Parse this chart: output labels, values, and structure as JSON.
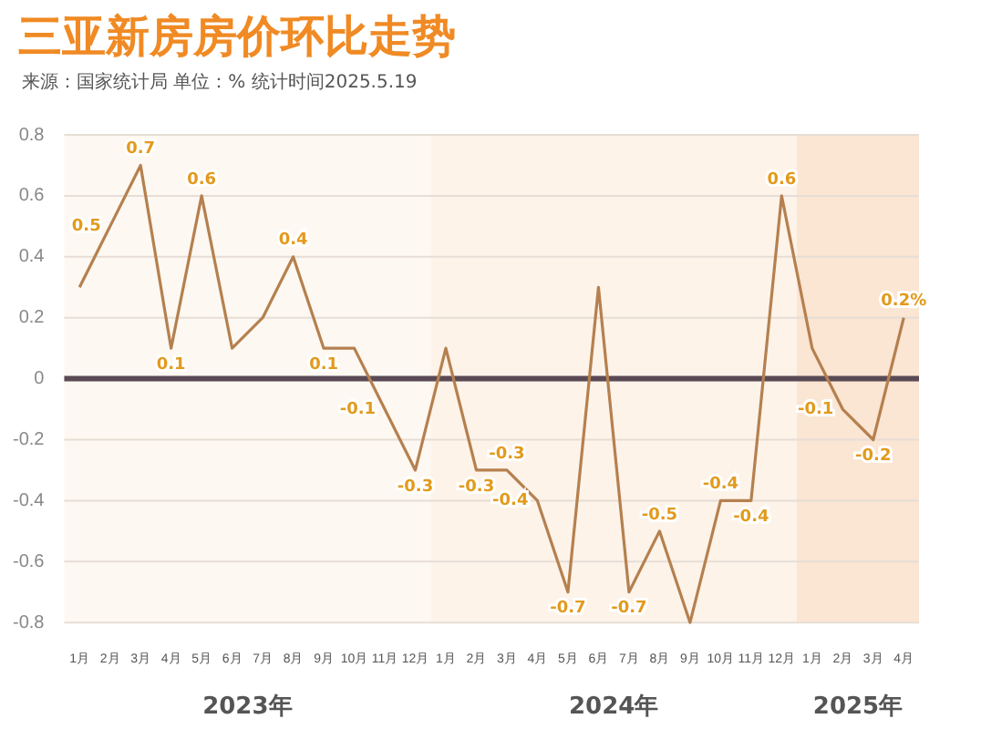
{
  "chart_data": {
    "type": "line",
    "title": "三亚新房房价环比走势",
    "subtitle": "来源：国家统计局    单位：%    统计时间2025.5.19",
    "x": [
      "2023-01",
      "2023-02",
      "2023-03",
      "2023-04",
      "2023-05",
      "2023-06",
      "2023-07",
      "2023-08",
      "2023-09",
      "2023-10",
      "2023-11",
      "2023-12",
      "2024-01",
      "2024-02",
      "2024-03",
      "2024-04",
      "2024-05",
      "2024-06",
      "2024-07",
      "2024-08",
      "2024-09",
      "2024-10",
      "2024-11",
      "2024-12",
      "2025-01",
      "2025-02",
      "2025-03",
      "2025-04"
    ],
    "series": [
      {
        "color": "#b5804f",
        "values": [
          0.3,
          0.5,
          0.7,
          0.1,
          0.6,
          0.1,
          0.2,
          0.4,
          0.1,
          0.1,
          -0.1,
          -0.3,
          0.1,
          -0.3,
          -0.3,
          -0.4,
          -0.7,
          0.3,
          -0.7,
          -0.5,
          -0.8,
          -0.4,
          -0.4,
          0.6,
          0.1,
          -0.1,
          -0.2,
          0.2
        ],
        "value_labels": [
          null,
          "0.5",
          "0.7",
          "0.1",
          "0.6",
          null,
          null,
          "0.4",
          "0.1",
          null,
          "-0.1",
          "-0.3",
          null,
          "-0.3",
          "-0.3",
          "-0.4",
          "-0.7",
          null,
          "-0.7",
          "-0.5",
          null,
          "-0.4",
          "-0.4",
          "0.6",
          null,
          "-0.1",
          "-0.2",
          "0.2%"
        ]
      }
    ],
    "xlim": [
      "2022-12-16",
      "2025-04-16"
    ],
    "xticks": [
      {
        "value": "2023-01",
        "label": "1月"
      },
      {
        "value": "2023-02",
        "label": "2月"
      },
      {
        "value": "2023-03",
        "label": "3月"
      },
      {
        "value": "2023-04",
        "label": "4月"
      },
      {
        "value": "2023-05",
        "label": "5月"
      },
      {
        "value": "2023-06",
        "label": "6月"
      },
      {
        "value": "2023-07",
        "label": "7月"
      },
      {
        "value": "2023-08",
        "label": "8月"
      },
      {
        "value": "2023-09",
        "label": "9月"
      },
      {
        "value": "2023-10",
        "label": "10月"
      },
      {
        "value": "2023-11",
        "label": "11月"
      },
      {
        "value": "2023-12",
        "label": "12月"
      },
      {
        "value": "2024-01",
        "label": "1月"
      },
      {
        "value": "2024-02",
        "label": "2月"
      },
      {
        "value": "2024-03",
        "label": "3月"
      },
      {
        "value": "2024-04",
        "label": "4月"
      },
      {
        "value": "2024-05",
        "label": "5月"
      },
      {
        "value": "2024-06",
        "label": "6月"
      },
      {
        "value": "2024-07",
        "label": "7月"
      },
      {
        "value": "2024-08",
        "label": "8月"
      },
      {
        "value": "2024-09",
        "label": "9月"
      },
      {
        "value": "2024-10",
        "label": "10月"
      },
      {
        "value": "2024-11",
        "label": "11月"
      },
      {
        "value": "2024-12",
        "label": "12月"
      },
      {
        "value": "2025-01",
        "label": "1月"
      },
      {
        "value": "2025-02",
        "label": "2月"
      },
      {
        "value": "2025-03",
        "label": "3月"
      },
      {
        "value": "2025-04",
        "label": "4月"
      }
    ],
    "ylim": [
      -0.8,
      0.8
    ],
    "yticks": [
      -0.8,
      -0.6,
      -0.4,
      -0.2,
      0,
      0.2,
      0.4,
      0.6,
      0.8
    ],
    "bands": [
      {
        "axis": "x",
        "from": "2022-12-16",
        "to": "2023-12-16",
        "label": "2023年",
        "color": "#fdf8f1"
      },
      {
        "axis": "x",
        "from": "2023-12-16",
        "to": "2024-12-16",
        "label": "2024年",
        "color": "#fdf3e9"
      },
      {
        "axis": "x",
        "from": "2024-12-16",
        "to": "2025-04-16",
        "label": "2025年",
        "color": "#fbe5d3"
      }
    ],
    "ref_lines": [
      {
        "axis": "y",
        "value": 0,
        "color": "#5a4a55"
      }
    ],
    "grid": "y",
    "legend": false,
    "marker": "none",
    "line_style": "solid"
  }
}
